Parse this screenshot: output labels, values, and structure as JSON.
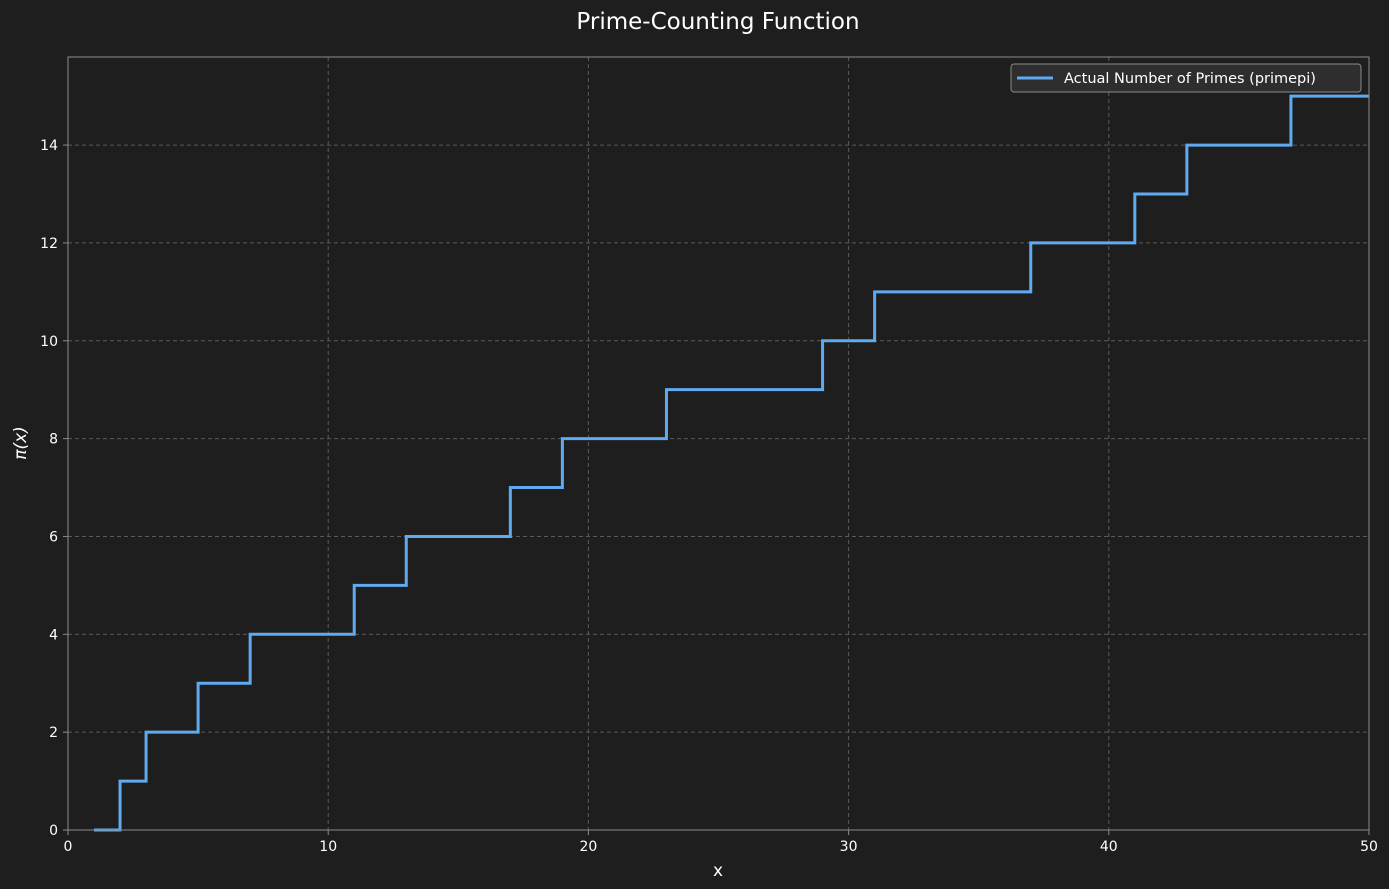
{
  "colors": {
    "background": "#1e1e1e",
    "axes_face": "#1e1e1e",
    "spine": "#8c8c8c",
    "grid": "#5a5a5a",
    "text": "#ffffff",
    "series": "#5faaf0",
    "legend_bg": "#2e2e2e",
    "legend_border": "#8a8a8a"
  },
  "chart_data": {
    "type": "line",
    "subtype": "step-post",
    "title": "Prime-Counting Function",
    "xlabel": "x",
    "ylabel": "π(x)",
    "xlim": [
      0,
      50
    ],
    "ylim": [
      0,
      15.8
    ],
    "xticks": [
      0,
      10,
      20,
      30,
      40,
      50
    ],
    "yticks": [
      0,
      2,
      4,
      6,
      8,
      10,
      12,
      14
    ],
    "grid": true,
    "grid_style": "dashed",
    "legend_position": "upper right",
    "series": [
      {
        "name": "Actual Number of Primes (primepi)",
        "x": [
          1,
          2,
          3,
          5,
          7,
          11,
          13,
          17,
          19,
          23,
          29,
          31,
          37,
          41,
          43,
          47,
          50
        ],
        "y": [
          0,
          1,
          2,
          3,
          4,
          5,
          6,
          7,
          8,
          9,
          10,
          11,
          12,
          13,
          14,
          15,
          15
        ]
      }
    ]
  }
}
